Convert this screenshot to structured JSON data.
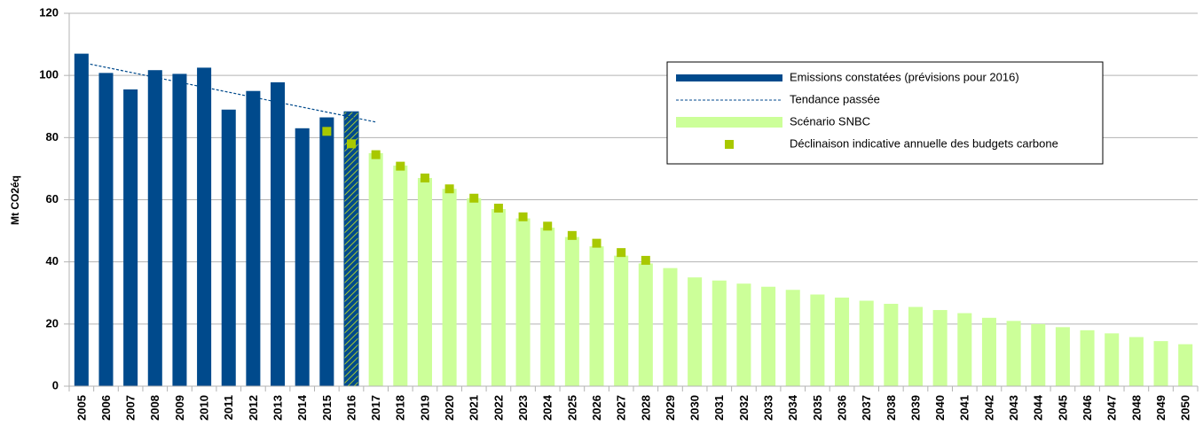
{
  "chart_data": {
    "type": "bar",
    "y_label": "Mt CO2éq",
    "categories": [
      "2005",
      "2006",
      "2007",
      "2008",
      "2009",
      "2010",
      "2011",
      "2012",
      "2013",
      "2014",
      "2015",
      "2016",
      "2017",
      "2018",
      "2019",
      "2020",
      "2021",
      "2022",
      "2023",
      "2024",
      "2025",
      "2026",
      "2027",
      "2028",
      "2029",
      "2030",
      "2031",
      "2032",
      "2033",
      "2034",
      "2035",
      "2036",
      "2037",
      "2038",
      "2039",
      "2040",
      "2041",
      "2042",
      "2043",
      "2044",
      "2045",
      "2046",
      "2047",
      "2048",
      "2049",
      "2050"
    ],
    "series": [
      {
        "name": "Emissions constatées (prévisions pour 2016)",
        "type": "bar",
        "color": "#004a8c",
        "hatch_color": "#a8c832",
        "hatched_indices": [
          11
        ],
        "values": [
          107,
          100.8,
          95.5,
          101.7,
          100.5,
          102.5,
          89,
          95,
          97.8,
          83,
          86.5,
          88.3,
          null,
          null,
          null,
          null,
          null,
          null,
          null,
          null,
          null,
          null,
          null,
          null,
          null,
          null,
          null,
          null,
          null,
          null,
          null,
          null,
          null,
          null,
          null,
          null,
          null,
          null,
          null,
          null,
          null,
          null,
          null,
          null,
          null,
          null
        ]
      },
      {
        "name": "Tendance passée",
        "type": "line",
        "color": "#004a8c",
        "values": [
          104.2,
          102.6,
          101.0,
          99.4,
          97.8,
          96.2,
          94.6,
          93.0,
          91.4,
          89.8,
          88.2,
          86.6,
          85.0,
          null,
          null,
          null,
          null,
          null,
          null,
          null,
          null,
          null,
          null,
          null,
          null,
          null,
          null,
          null,
          null,
          null,
          null,
          null,
          null,
          null,
          null,
          null,
          null,
          null,
          null,
          null,
          null,
          null,
          null,
          null,
          null,
          null
        ]
      },
      {
        "name": "Scénario SNBC",
        "type": "bar",
        "color": "#ccff99",
        "values": [
          null,
          null,
          null,
          null,
          null,
          null,
          null,
          null,
          null,
          null,
          null,
          null,
          75,
          71,
          67,
          63.5,
          60.5,
          57,
          54,
          51,
          48,
          45,
          42,
          39.5,
          38,
          35,
          34,
          33,
          32,
          31,
          29.5,
          28.5,
          27.5,
          26.5,
          25.5,
          24.5,
          23.5,
          22,
          21,
          20,
          19,
          18,
          17,
          15.8,
          14.5,
          13.5
        ]
      },
      {
        "name": "Déclinaison indicative annuelle des budgets carbone",
        "type": "scatter",
        "color": "#a8c800",
        "values": [
          null,
          null,
          null,
          null,
          null,
          null,
          null,
          null,
          null,
          null,
          82,
          78,
          74.5,
          70.8,
          67,
          63.5,
          60.5,
          57.3,
          54.5,
          51.5,
          48.5,
          46,
          43,
          40.5,
          null,
          null,
          null,
          null,
          null,
          null,
          null,
          null,
          null,
          null,
          null,
          null,
          null,
          null,
          null,
          null,
          null,
          null,
          null,
          null,
          null,
          null
        ]
      }
    ],
    "ylim": [
      0,
      120
    ],
    "yticks": [
      0,
      20,
      40,
      60,
      80,
      100,
      120
    ],
    "grid": true,
    "legend": "upper right"
  }
}
